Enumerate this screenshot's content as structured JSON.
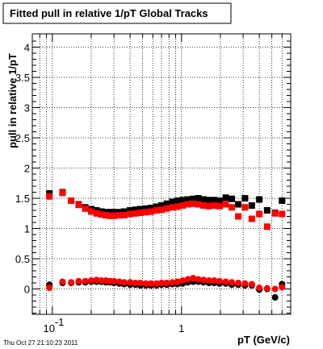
{
  "title": "Fitted pull in relative 1/pT  Global Tracks",
  "footer": "Thu Oct 27 21:10:23 2011",
  "chart_data": {
    "type": "scatter",
    "title": "Fitted pull in relative 1/pT  Global Tracks",
    "xlabel": "pT (GeV/c)",
    "ylabel": "pull in relative 1/pT",
    "x_scale": "log",
    "xlim": [
      0.07,
      7.0
    ],
    "ylim": [
      -0.42,
      4.22
    ],
    "x_tick_labels": [
      {
        "value": 0.1,
        "base": "10",
        "exp": "-1"
      },
      {
        "value": 1,
        "base": "1",
        "exp": ""
      }
    ],
    "y_tick_labels": [
      "0",
      "0.5",
      "1",
      "1.5",
      "2",
      "2.5",
      "3",
      "3.5",
      "4"
    ],
    "y_tick_values": [
      0,
      0.5,
      1,
      1.5,
      2,
      2.5,
      3,
      3.5,
      4
    ],
    "grid": true,
    "series": [
      {
        "name": "",
        "color": "#000000",
        "marker": "square",
        "x": [
          0.095,
          0.12,
          0.14,
          0.16,
          0.18,
          0.2,
          0.22,
          0.24,
          0.26,
          0.28,
          0.3,
          0.33,
          0.36,
          0.4,
          0.44,
          0.48,
          0.53,
          0.58,
          0.64,
          0.7,
          0.77,
          0.85,
          0.93,
          1.02,
          1.12,
          1.23,
          1.35,
          1.48,
          1.63,
          1.79,
          1.97,
          2.2,
          2.45,
          2.75,
          3.1,
          3.5,
          4.0,
          4.6,
          5.3,
          6.0
        ],
        "y": [
          1.58,
          1.6,
          1.46,
          1.4,
          1.35,
          1.32,
          1.3,
          1.28,
          1.27,
          1.27,
          1.27,
          1.27,
          1.28,
          1.3,
          1.31,
          1.32,
          1.33,
          1.34,
          1.36,
          1.38,
          1.41,
          1.44,
          1.46,
          1.47,
          1.48,
          1.49,
          1.5,
          1.48,
          1.47,
          1.47,
          1.46,
          1.51,
          1.49,
          1.4,
          1.5,
          1.38,
          1.48,
          1.3,
          1.26,
          1.46
        ]
      },
      {
        "name": "",
        "color": "#ff0000",
        "marker": "square",
        "x": [
          0.095,
          0.12,
          0.14,
          0.16,
          0.18,
          0.2,
          0.22,
          0.24,
          0.26,
          0.28,
          0.3,
          0.33,
          0.36,
          0.4,
          0.44,
          0.48,
          0.53,
          0.58,
          0.64,
          0.7,
          0.77,
          0.85,
          0.93,
          1.02,
          1.12,
          1.23,
          1.35,
          1.48,
          1.63,
          1.79,
          1.97,
          2.2,
          2.45,
          2.75,
          3.1,
          3.5,
          4.0,
          4.6,
          5.3,
          6.0
        ],
        "y": [
          1.53,
          1.59,
          1.46,
          1.39,
          1.33,
          1.28,
          1.25,
          1.23,
          1.22,
          1.21,
          1.21,
          1.22,
          1.22,
          1.24,
          1.25,
          1.26,
          1.27,
          1.28,
          1.3,
          1.31,
          1.33,
          1.35,
          1.36,
          1.38,
          1.4,
          1.41,
          1.4,
          1.38,
          1.37,
          1.38,
          1.37,
          1.4,
          1.35,
          1.2,
          1.35,
          1.16,
          1.24,
          1.03,
          1.25,
          1.24
        ]
      },
      {
        "name": "",
        "color": "#000000",
        "marker": "circle",
        "x": [
          0.095,
          0.12,
          0.14,
          0.16,
          0.18,
          0.2,
          0.22,
          0.24,
          0.26,
          0.28,
          0.3,
          0.33,
          0.36,
          0.4,
          0.44,
          0.48,
          0.53,
          0.58,
          0.64,
          0.7,
          0.77,
          0.85,
          0.93,
          1.02,
          1.12,
          1.23,
          1.35,
          1.48,
          1.63,
          1.79,
          1.97,
          2.2,
          2.45,
          2.75,
          3.1,
          3.5,
          4.0,
          4.6,
          5.3,
          6.0
        ],
        "y": [
          0.07,
          0.1,
          0.1,
          0.11,
          0.11,
          0.12,
          0.12,
          0.12,
          0.11,
          0.11,
          0.1,
          0.09,
          0.08,
          0.07,
          0.07,
          0.06,
          0.06,
          0.06,
          0.06,
          0.07,
          0.07,
          0.08,
          0.08,
          0.09,
          0.11,
          0.12,
          0.12,
          0.11,
          0.1,
          0.1,
          0.09,
          0.09,
          0.07,
          0.07,
          0.06,
          0.06,
          -0.01,
          0.0,
          -0.14,
          0.08
        ]
      },
      {
        "name": "",
        "color": "#ff0000",
        "marker": "circle",
        "x": [
          0.095,
          0.12,
          0.14,
          0.16,
          0.18,
          0.2,
          0.22,
          0.24,
          0.26,
          0.28,
          0.3,
          0.33,
          0.36,
          0.4,
          0.44,
          0.48,
          0.53,
          0.58,
          0.64,
          0.7,
          0.77,
          0.85,
          0.93,
          1.02,
          1.12,
          1.23,
          1.35,
          1.48,
          1.63,
          1.79,
          1.97,
          2.2,
          2.45,
          2.75,
          3.1,
          3.5,
          4.0,
          4.6,
          5.3,
          6.0
        ],
        "y": [
          0.02,
          0.12,
          0.11,
          0.13,
          0.13,
          0.14,
          0.15,
          0.14,
          0.14,
          0.13,
          0.13,
          0.12,
          0.11,
          0.11,
          0.1,
          0.1,
          0.09,
          0.09,
          0.09,
          0.1,
          0.1,
          0.11,
          0.12,
          0.14,
          0.16,
          0.18,
          0.16,
          0.15,
          0.14,
          0.14,
          0.13,
          0.12,
          0.11,
          0.1,
          0.09,
          0.08,
          0.02,
          0.01,
          0.0,
          0.03
        ]
      }
    ]
  }
}
